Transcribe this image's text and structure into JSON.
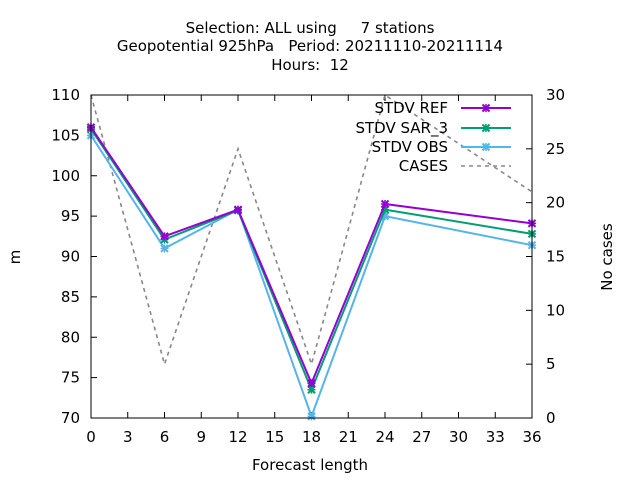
{
  "chart_data": {
    "type": "line",
    "title_lines": [
      "Selection: ALL using     7 stations",
      "Geopotential 925hPa   Period: 20211110-20211114",
      "Hours:  12"
    ],
    "xlabel": "Forecast length",
    "ylabel": "m",
    "y2label": "No cases",
    "xlim": [
      0,
      36
    ],
    "ylim": [
      70,
      110
    ],
    "y2lim": [
      0,
      30
    ],
    "x_ticks": [
      0,
      3,
      6,
      9,
      12,
      15,
      18,
      21,
      24,
      27,
      30,
      33,
      36
    ],
    "y_ticks": [
      70,
      75,
      80,
      85,
      90,
      95,
      100,
      105,
      110
    ],
    "y2_ticks": [
      0,
      5,
      10,
      15,
      20,
      25,
      30
    ],
    "legend_position": "top-right",
    "x": [
      0,
      6,
      12,
      18,
      24,
      36
    ],
    "series": [
      {
        "name": "STDV REF",
        "color": "#9400d3",
        "marker": "x",
        "axis": "y1",
        "values": [
          106.0,
          92.5,
          95.8,
          74.3,
          96.5,
          94.1
        ]
      },
      {
        "name": "STDV SAR_3",
        "color": "#009e73",
        "marker": "x",
        "axis": "y1",
        "values": [
          105.8,
          92.1,
          95.7,
          73.5,
          95.8,
          92.8
        ]
      },
      {
        "name": "STDV OBS",
        "color": "#56b4e9",
        "marker": "x",
        "axis": "y1",
        "values": [
          105.0,
          91.0,
          95.8,
          70.2,
          95.0,
          91.4
        ]
      },
      {
        "name": "CASES",
        "color": "#888888",
        "marker": "none",
        "dashed": true,
        "axis": "y2",
        "values": [
          30,
          5,
          25,
          5,
          30,
          21
        ]
      }
    ]
  }
}
